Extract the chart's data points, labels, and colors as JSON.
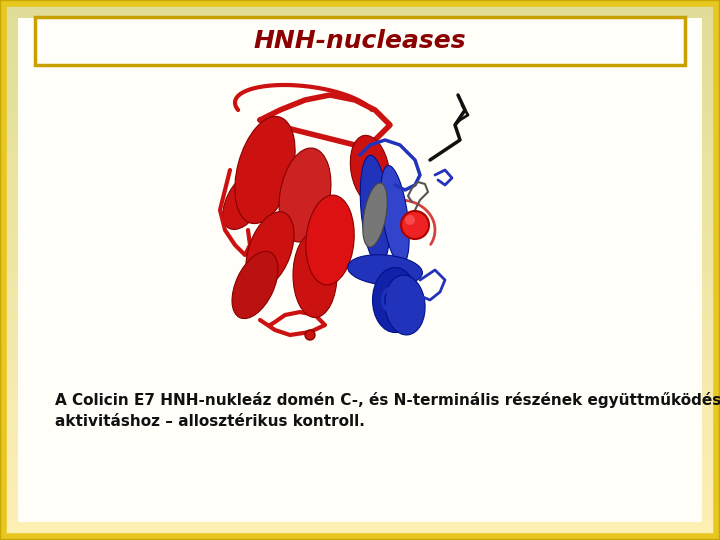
{
  "background_outer": "#f0e68c",
  "background_outer_gradient_top": "#fdf5d0",
  "background_outer_gradient_bottom": "#e8d070",
  "background_inner": "#fffef8",
  "border_outer_color": "#d4aa00",
  "border_inner_color": "#c8a000",
  "title": "HNH-nucleases",
  "title_color": "#8b0000",
  "title_fontsize": 18,
  "title_fontstyle": "italic",
  "title_fontweight": "bold",
  "body_text_color": "#111111",
  "body_fontsize": 11.0,
  "body_line1": "A Colicin E7 HNH-nukleáz domén C-, és N-terminális részének együttműködése: az N-terminális arginin szükséges a katalitikus",
  "body_line2": "aktivitáshoz – allosztérikus kontroll."
}
